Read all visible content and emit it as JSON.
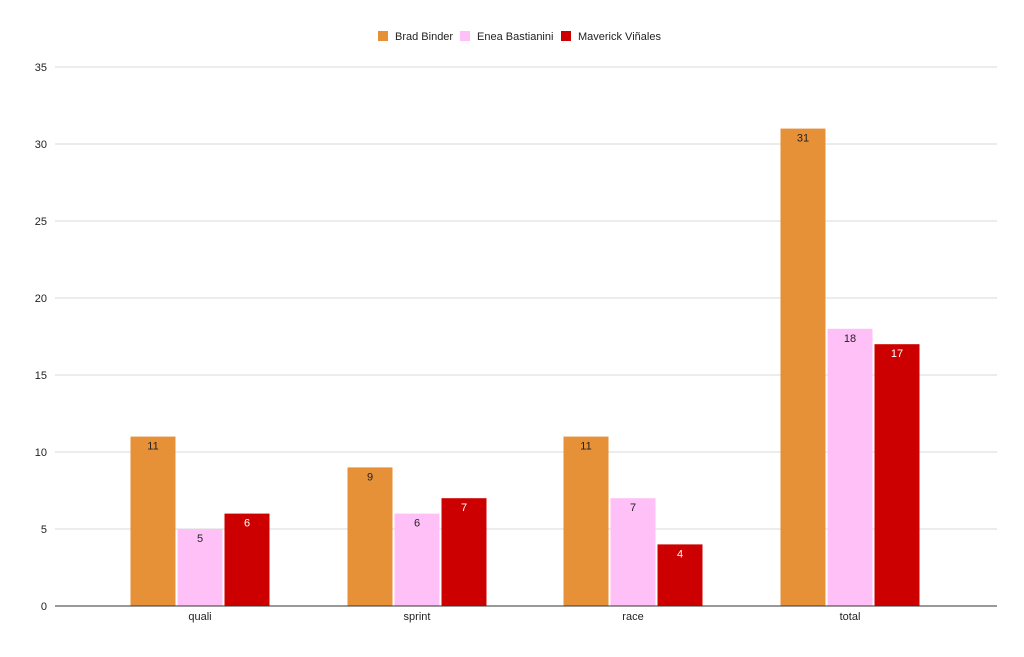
{
  "chart_data": {
    "type": "bar",
    "title": "",
    "xlabel": "",
    "ylabel": "",
    "categories": [
      "quali",
      "sprint",
      "race",
      "total"
    ],
    "series": [
      {
        "name": "Brad Binder",
        "color": "#e69138",
        "label_color": "#222222",
        "values": [
          11,
          9,
          11,
          31
        ]
      },
      {
        "name": "Enea Bastianini",
        "color": "#ffc0f7",
        "label_color": "#222222",
        "values": [
          5,
          6,
          7,
          18
        ]
      },
      {
        "name": "Maverick Viñales",
        "color": "#cc0000",
        "label_color": "#ffffff",
        "values": [
          6,
          7,
          4,
          17
        ]
      }
    ],
    "ylim": [
      0,
      35
    ],
    "yticks": [
      0,
      5,
      10,
      15,
      20,
      25,
      30,
      35
    ],
    "grid": true,
    "legend_position": "top-center",
    "gridline_color": "#d9d9d9",
    "axis_color": "#333333"
  }
}
